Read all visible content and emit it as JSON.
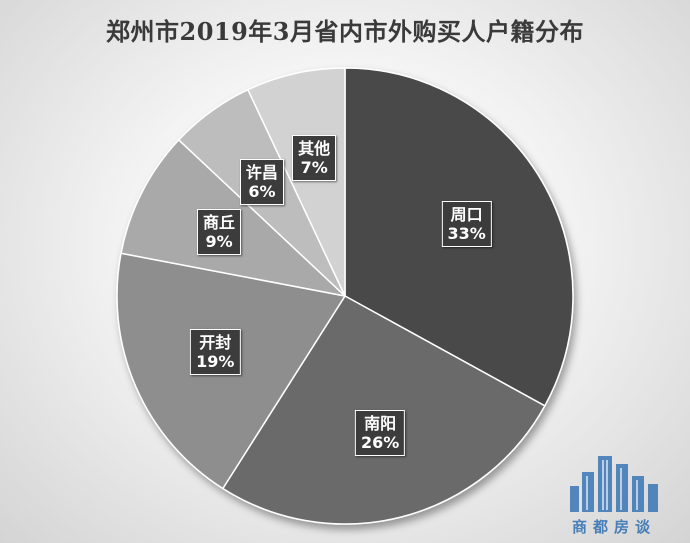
{
  "chart_data": {
    "type": "pie",
    "title": "郑州市2019年3月省内市外购买人户籍分布",
    "slices": [
      {
        "label": "周口",
        "value": 33,
        "display": "33%",
        "color": "#4a4a4a"
      },
      {
        "label": "南阳",
        "value": 26,
        "display": "26%",
        "color": "#6a6a6a"
      },
      {
        "label": "开封",
        "value": 19,
        "display": "19%",
        "color": "#8e8e8e"
      },
      {
        "label": "商丘",
        "value": 9,
        "display": "9%",
        "color": "#a9a9a9"
      },
      {
        "label": "许昌",
        "value": 6,
        "display": "6%",
        "color": "#bdbdbd"
      },
      {
        "label": "其他",
        "value": 7,
        "display": "7%",
        "color": "#d2d2d2"
      }
    ],
    "legend": "none",
    "start_angle": "12 o'clock",
    "direction": "clockwise"
  },
  "watermark": {
    "text": "商都房谈"
  }
}
